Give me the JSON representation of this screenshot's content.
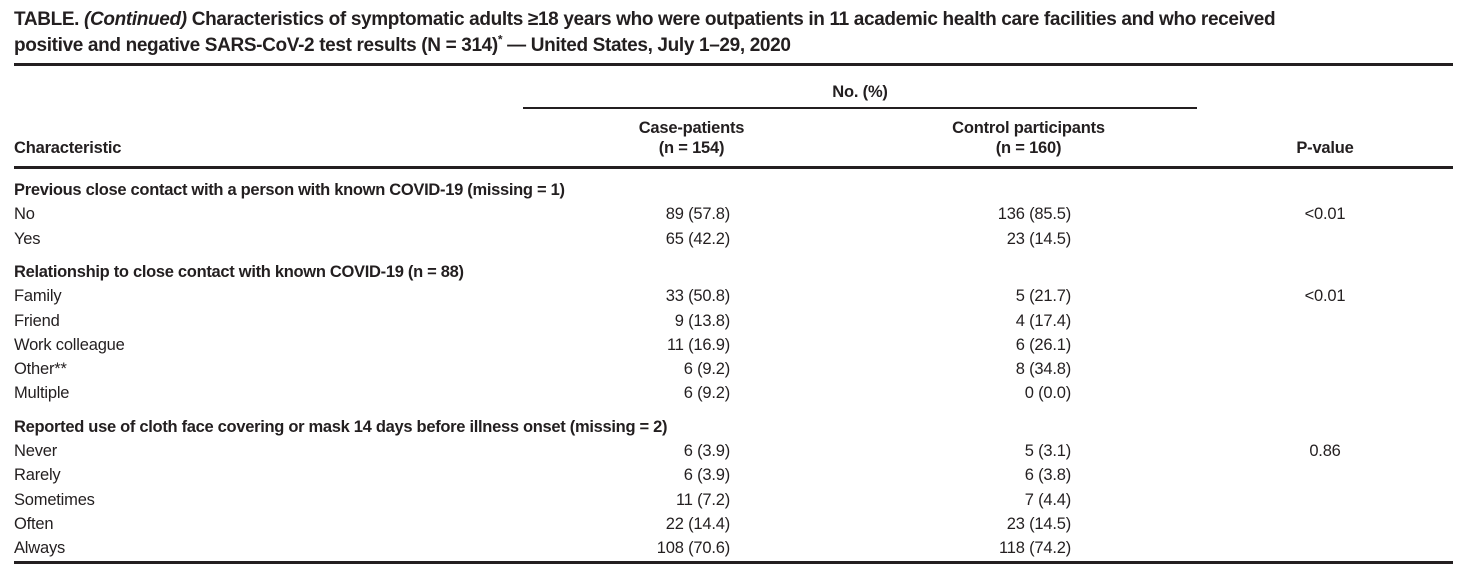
{
  "title": {
    "line1_prefix": "TABLE. ",
    "line1_continued": "(Continued)",
    "line1_rest": " Characteristics of symptomatic adults ≥18 years who were outpatients in 11 academic health care facilities and who received",
    "line2_main": "positive and negative SARS-CoV-2 test results (N = 314)",
    "line2_footnote_marker": "*",
    "line2_rest": " — United States, July 1–29, 2020"
  },
  "columns": {
    "group_header": "No. (%)",
    "characteristic": "Characteristic",
    "case_label": "Case-patients",
    "case_n": "(n = 154)",
    "control_label": "Control participants",
    "control_n": "(n = 160)",
    "pvalue": "P-value"
  },
  "sections": [
    {
      "header": "Previous close contact with a person with known COVID-19 (missing = 1)",
      "rows": [
        {
          "label": "No",
          "case": "89 (57.8)",
          "control": "136 (85.5)",
          "p": "<0.01"
        },
        {
          "label": "Yes",
          "case": "65 (42.2)",
          "control": "23 (14.5)",
          "p": ""
        }
      ]
    },
    {
      "header": "Relationship to close contact with known COVID-19 (n = 88)",
      "rows": [
        {
          "label": "Family",
          "case": "33 (50.8)",
          "control": "5 (21.7)",
          "p": "<0.01"
        },
        {
          "label": "Friend",
          "case": "9 (13.8)",
          "control": "4 (17.4)",
          "p": ""
        },
        {
          "label": "Work colleague",
          "case": "11 (16.9)",
          "control": "6 (26.1)",
          "p": ""
        },
        {
          "label": "Other**",
          "case": "6 (9.2)",
          "control": "8 (34.8)",
          "p": ""
        },
        {
          "label": "Multiple",
          "case": "6 (9.2)",
          "control": "0 (0.0)",
          "p": ""
        }
      ]
    },
    {
      "header": "Reported use of cloth face covering or mask 14 days before illness onset (missing = 2)",
      "rows": [
        {
          "label": "Never",
          "case": "6 (3.9)",
          "control": "5 (3.1)",
          "p": "0.86"
        },
        {
          "label": "Rarely",
          "case": "6 (3.9)",
          "control": "6 (3.8)",
          "p": ""
        },
        {
          "label": "Sometimes",
          "case": "11 (7.2)",
          "control": "7 (4.4)",
          "p": ""
        },
        {
          "label": "Often",
          "case": "22 (14.4)",
          "control": "23 (14.5)",
          "p": ""
        },
        {
          "label": "Always",
          "case": "108 (70.6)",
          "control": "118 (74.2)",
          "p": ""
        }
      ]
    }
  ],
  "colors": {
    "text": "#231f20",
    "rule": "#231f20",
    "background": "#ffffff"
  }
}
